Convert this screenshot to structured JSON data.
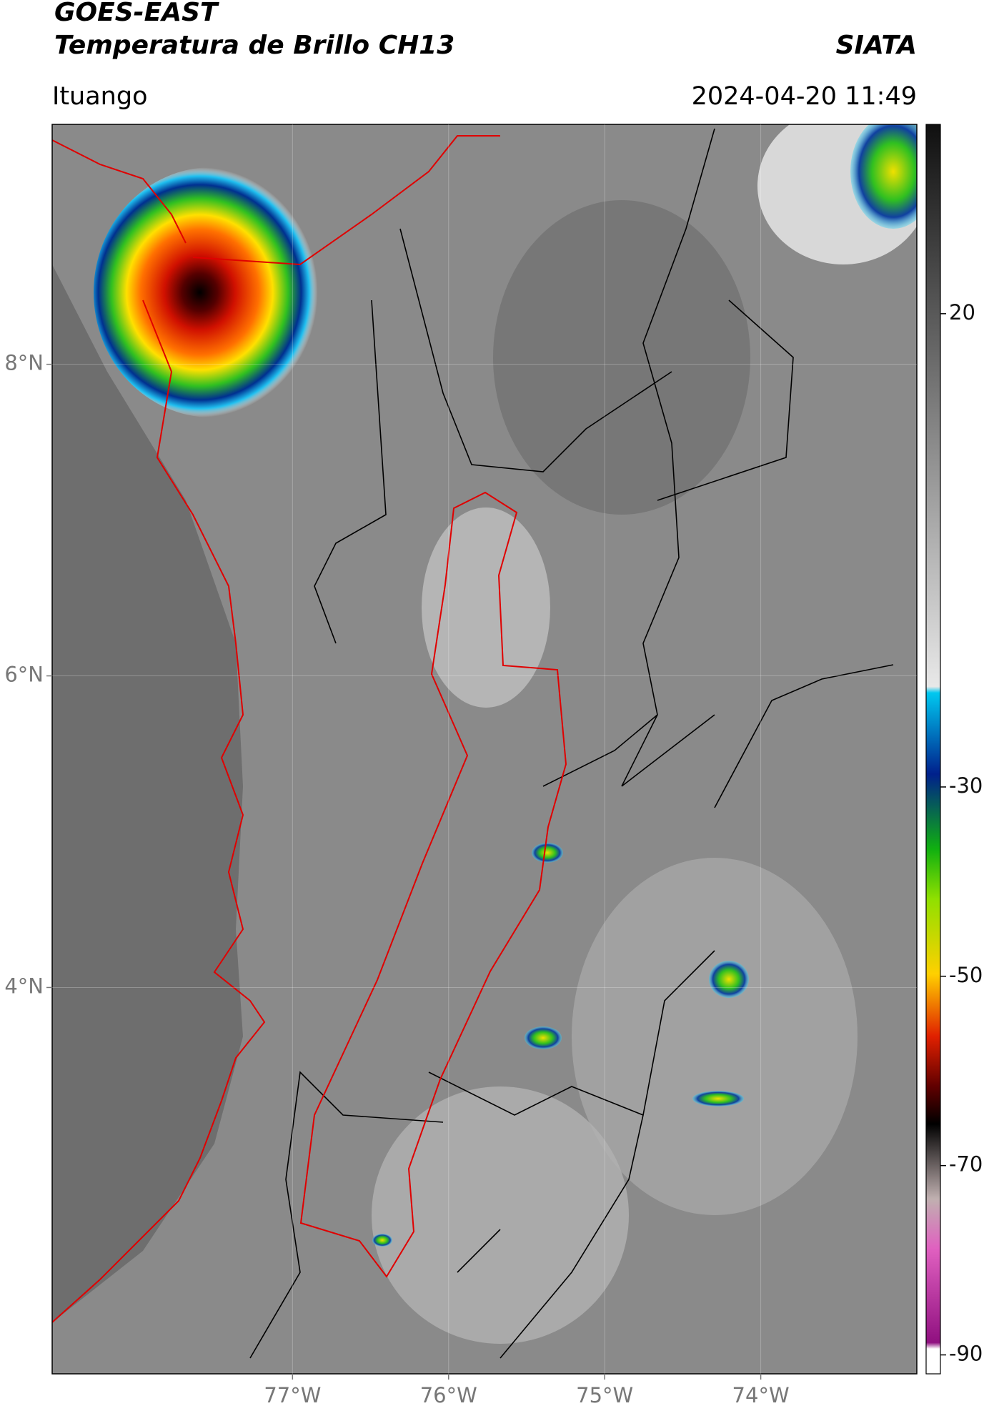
{
  "header": {
    "title": "GOES-EAST",
    "subtitle": "Temperatura de Brillo CH13",
    "source": "SIATA",
    "place": "Ituango",
    "datetime": "2024-04-20 11:49"
  },
  "map": {
    "lonlim": [
      -78.54,
      -73.0
    ],
    "latlim": [
      1.52,
      9.54
    ],
    "lon_ticks": [
      {
        "value": -77,
        "label": "77°W"
      },
      {
        "value": -76,
        "label": "76°W"
      },
      {
        "value": -75,
        "label": "75°W"
      },
      {
        "value": -74,
        "label": "74°W"
      }
    ],
    "lat_ticks": [
      {
        "value": 8,
        "label": "8°N"
      },
      {
        "value": 6,
        "label": "6°N"
      },
      {
        "value": 4,
        "label": "4°N"
      }
    ],
    "grid": true
  },
  "colorbar": {
    "lim": [
      -92,
      40
    ],
    "ticks": [
      20,
      -30,
      -50,
      -70,
      -90
    ]
  }
}
